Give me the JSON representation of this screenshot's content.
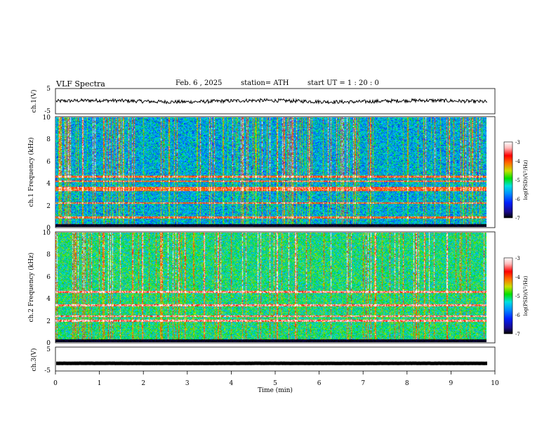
{
  "header": {
    "title": "VLF  Spectra",
    "date": "Feb. 6  , 2025",
    "station": "station= ATH",
    "start": "start  UT  =   1 : 20 : 0"
  },
  "chart_data": [
    {
      "type": "line",
      "panel": "ch1-waveform",
      "ylabel": "ch.1(V)",
      "ylim": [
        -5,
        5
      ],
      "yticks": [
        "5",
        "-5"
      ],
      "xlim": [
        0,
        9.8
      ],
      "approx_level": 0.0,
      "fluctuation": "small noise around 0 V"
    },
    {
      "type": "heatmap",
      "panel": "ch1-spectrogram",
      "ylabel": "ch.1\nFrequency  (kHz)",
      "ylim": [
        0,
        10
      ],
      "yticks": [
        "0",
        "2",
        "4",
        "6",
        "8",
        "10"
      ],
      "xlim": [
        0,
        9.8
      ],
      "colorbar": {
        "label": "log(PSD)(V²/Hz)",
        "range": [
          -7,
          -3
        ],
        "ticks": [
          "-3",
          "-4",
          "-5",
          "-6",
          "-7"
        ]
      },
      "persistent_bands_khz": [
        2.2,
        3.4,
        3.6,
        4.2,
        4.6,
        0.9
      ],
      "mean_level": -5.6
    },
    {
      "type": "heatmap",
      "panel": "ch2-spectrogram",
      "ylabel": "ch.2\nFrequency  (kHz)",
      "ylim": [
        0,
        10
      ],
      "yticks": [
        "0",
        "2",
        "4",
        "6",
        "8",
        "10"
      ],
      "xlim": [
        0,
        9.8
      ],
      "colorbar": {
        "label": "log(PSD)(V²/Hz)",
        "range": [
          -7,
          -3
        ],
        "ticks": [
          "-3",
          "-4",
          "-5",
          "-6",
          "-7"
        ]
      },
      "persistent_bands_khz": [
        2.0,
        2.4,
        3.4,
        4.6
      ],
      "mean_level": -5.2
    },
    {
      "type": "line",
      "panel": "ch3-waveform",
      "ylabel": "ch.3(V)",
      "ylim": [
        -5,
        5
      ],
      "yticks": [
        "5",
        "-5"
      ],
      "xlim": [
        0,
        9.8
      ],
      "approx_level": -1.8
    }
  ],
  "xaxis": {
    "label": "Time  (min)",
    "ticks": [
      "0",
      "1",
      "2",
      "3",
      "4",
      "5",
      "6",
      "7",
      "8",
      "9",
      "10"
    ],
    "range": [
      0,
      10
    ]
  },
  "colors": {
    "colormap": [
      "#000000",
      "#1a0a8c",
      "#0020ff",
      "#0090ff",
      "#00e0e0",
      "#00e000",
      "#c8e000",
      "#ff7000",
      "#ff0000",
      "#ffb8b8",
      "#ffffff"
    ]
  }
}
